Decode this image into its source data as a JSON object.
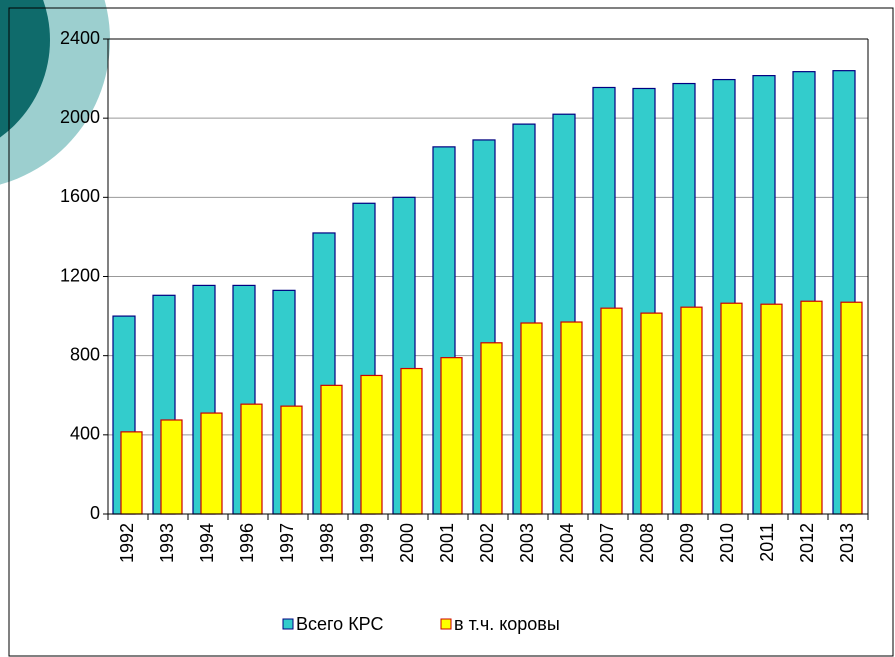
{
  "chart_data": {
    "type": "bar",
    "categories": [
      "1992",
      "1993",
      "1994",
      "1996",
      "1997",
      "1998",
      "1999",
      "2000",
      "2001",
      "2002",
      "2003",
      "2004",
      "2007",
      "2008",
      "2009",
      "2010",
      "2011",
      "2012",
      "2013"
    ],
    "series": [
      {
        "name": "Всего КРС",
        "color": "#33cccc",
        "values": [
          1000,
          1105,
          1155,
          1155,
          1130,
          1420,
          1570,
          1600,
          1855,
          1890,
          1970,
          2020,
          2155,
          2150,
          2175,
          2195,
          2215,
          2235,
          2240
        ]
      },
      {
        "name": "в т.ч. коровы",
        "color": "#ffff00",
        "values": [
          415,
          475,
          510,
          555,
          545,
          650,
          700,
          735,
          790,
          865,
          965,
          970,
          1040,
          1015,
          1045,
          1065,
          1060,
          1075,
          1070
        ]
      }
    ],
    "ylim": [
      0,
      2400
    ],
    "yticks": [
      0,
      400,
      800,
      1200,
      1600,
      2000,
      2400
    ],
    "grid": true
  }
}
